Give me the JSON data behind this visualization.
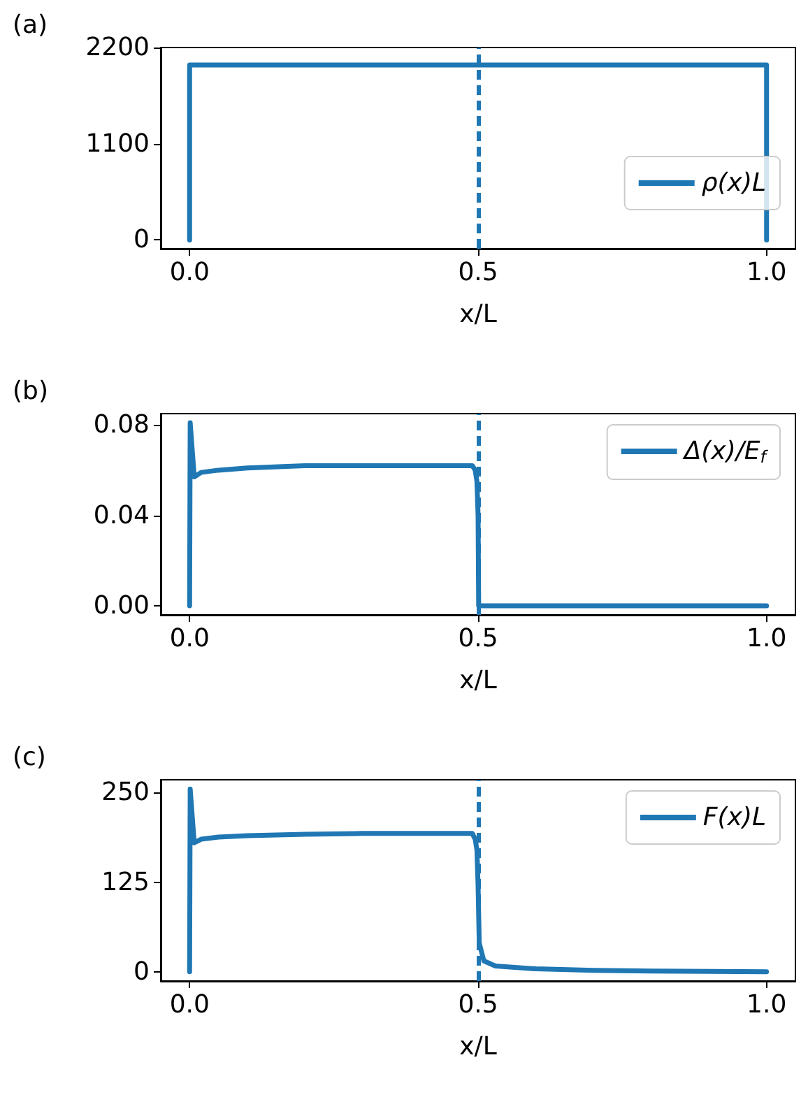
{
  "chart_data": [
    {
      "type": "line",
      "title": "(a)",
      "xlabel": "x/L",
      "xlim": [
        -0.05,
        1.05
      ],
      "xticks": [
        {
          "value": 0,
          "label": "0.0"
        },
        {
          "value": 0.5,
          "label": "0.5"
        },
        {
          "value": 1,
          "label": "1.0"
        }
      ],
      "ylim": [
        -100,
        2200
      ],
      "yticks": [
        0,
        1100,
        2200
      ],
      "grid": false,
      "legend": "right",
      "line_style": "solid",
      "ref_lines": [
        {
          "axis": "x",
          "value": 0.5,
          "color": "#1f77b4",
          "line_style": "dashed"
        }
      ],
      "series": [
        {
          "name": "ρ(x)L",
          "color": "#1f77b4",
          "x": [
            0,
            0,
            1,
            1
          ],
          "values": [
            0,
            2000,
            2000,
            0
          ]
        }
      ]
    },
    {
      "type": "line",
      "title": "(b)",
      "xlabel": "x/L",
      "xlim": [
        -0.05,
        1.05
      ],
      "xticks": [
        {
          "value": 0,
          "label": "0.0"
        },
        {
          "value": 0.5,
          "label": "0.5"
        },
        {
          "value": 1,
          "label": "1.0"
        }
      ],
      "ylim": [
        -0.004,
        0.085
      ],
      "yticks": [
        {
          "value": 0,
          "label": "0.00"
        },
        {
          "value": 0.04,
          "label": "0.04"
        },
        {
          "value": 0.08,
          "label": "0.08"
        }
      ],
      "grid": false,
      "legend": "top right",
      "line_style": "solid",
      "ref_lines": [
        {
          "axis": "x",
          "value": 0.5,
          "color": "#1f77b4",
          "line_style": "dashed"
        }
      ],
      "series": [
        {
          "name": "Δ(x)/E$_{f}$",
          "color": "#1f77b4",
          "x": [
            0,
            0.001,
            0.008,
            0.02,
            0.05,
            0.1,
            0.2,
            0.3,
            0.4,
            0.49,
            0.495,
            0.498,
            0.5,
            0.501,
            0.6,
            1.0
          ],
          "values": [
            0,
            0.081,
            0.057,
            0.059,
            0.06,
            0.061,
            0.062,
            0.062,
            0.062,
            0.062,
            0.06,
            0.055,
            0.04,
            0,
            0,
            0
          ]
        }
      ]
    },
    {
      "type": "line",
      "title": "(c)",
      "xlabel": "x/L",
      "xlim": [
        -0.05,
        1.05
      ],
      "xticks": [
        {
          "value": 0,
          "label": "0.0"
        },
        {
          "value": 0.5,
          "label": "0.5"
        },
        {
          "value": 1,
          "label": "1.0"
        }
      ],
      "ylim": [
        -13,
        268
      ],
      "yticks": [
        0,
        125,
        250
      ],
      "grid": false,
      "legend": "top right",
      "line_style": "solid",
      "ref_lines": [
        {
          "axis": "x",
          "value": 0.5,
          "color": "#1f77b4",
          "line_style": "dashed"
        }
      ],
      "series": [
        {
          "name": "F(x)L",
          "color": "#1f77b4",
          "x": [
            0,
            0.001,
            0.008,
            0.02,
            0.05,
            0.1,
            0.2,
            0.3,
            0.4,
            0.49,
            0.495,
            0.498,
            0.5,
            0.502,
            0.51,
            0.53,
            0.6,
            0.7,
            0.8,
            1.0
          ],
          "values": [
            0,
            255,
            180,
            185,
            188,
            190,
            192,
            193,
            193,
            193,
            185,
            170,
            120,
            40,
            15,
            8,
            4,
            2,
            1,
            0
          ]
        }
      ]
    }
  ]
}
